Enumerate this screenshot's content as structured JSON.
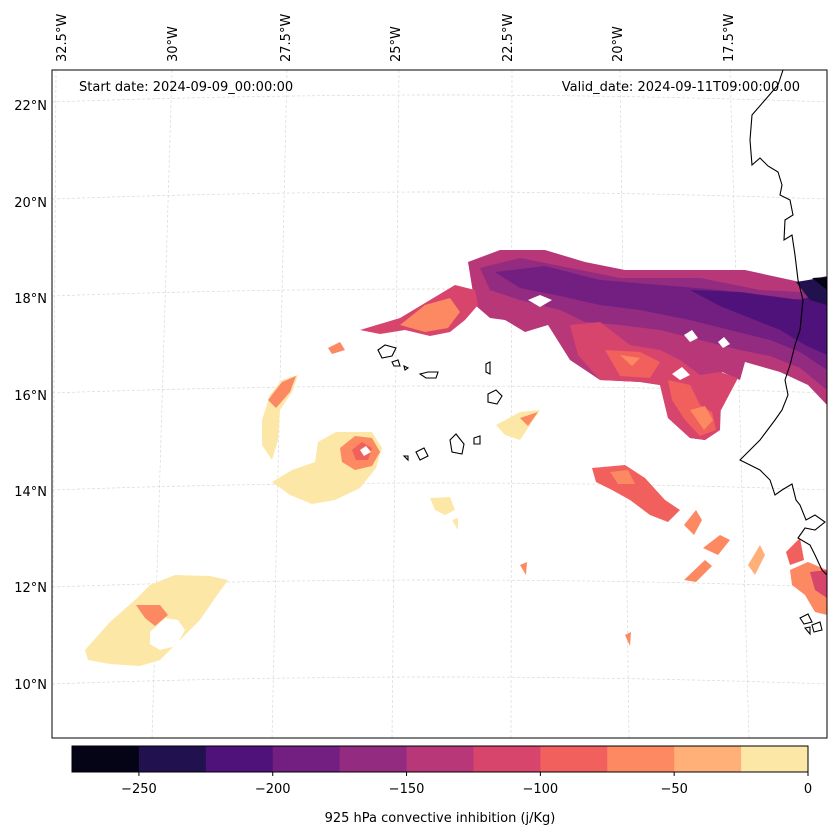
{
  "map": {
    "start_date": "Start date: 2024-09-09_00:00:00",
    "valid_date": "Valid_date: 2024-09-11T09:00:00.00",
    "lon_labels": [
      "32.5°W",
      "30°W",
      "27.5°W",
      "25°W",
      "22.5°W",
      "20°W",
      "17.5°W"
    ],
    "lat_labels": [
      "22°N",
      "20°N",
      "18°N",
      "16°N",
      "14°N",
      "12°N",
      "10°N"
    ]
  },
  "colorbar": {
    "label": "925 hPa convective inhibition (j/Kg)",
    "ticks": [
      "−250",
      "−200",
      "−150",
      "−100",
      "−50",
      "0"
    ],
    "levels": [
      -275,
      -250,
      -225,
      -200,
      -175,
      -150,
      -125,
      -100,
      -75,
      -50,
      -25,
      0
    ],
    "colors": [
      "#050416",
      "#21114e",
      "#4f127b",
      "#721f81",
      "#932b80",
      "#b73779",
      "#d8456c",
      "#f1605d",
      "#fc8961",
      "#feb078",
      "#fde7a6"
    ]
  },
  "colors": {
    "coastline": "#000000",
    "gridline": "#d8d8d8"
  }
}
